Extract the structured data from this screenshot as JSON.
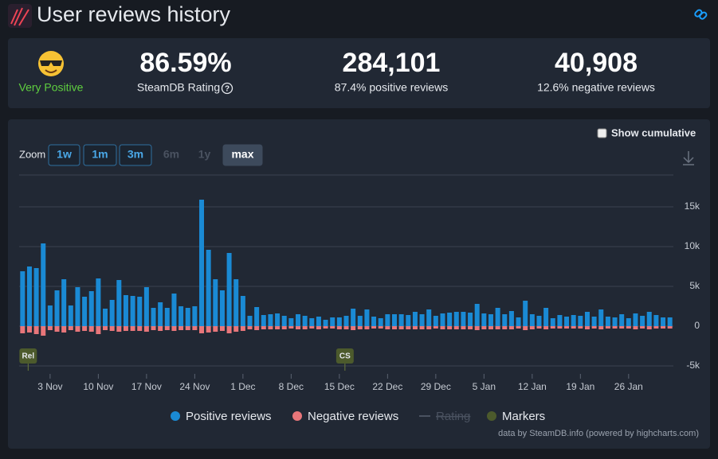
{
  "header": {
    "title": "User reviews history"
  },
  "stats": {
    "rating_label": "Very Positive",
    "score": "86.59%",
    "score_caption": "SteamDB Rating",
    "positive_total": "284,101",
    "positive_caption": "87.4% positive reviews",
    "negative_total": "40,908",
    "negative_caption": "12.6% negative reviews"
  },
  "controls": {
    "cumulative": "Show cumulative",
    "zoom": "Zoom",
    "zoom_buttons": [
      {
        "label": "1w",
        "state": "enabled"
      },
      {
        "label": "1m",
        "state": "enabled"
      },
      {
        "label": "3m",
        "state": "enabled"
      },
      {
        "label": "6m",
        "state": "disabled"
      },
      {
        "label": "1y",
        "state": "disabled"
      },
      {
        "label": "max",
        "state": "active"
      }
    ]
  },
  "chart_data": {
    "type": "bar",
    "categories": [
      null,
      null,
      null,
      null,
      "3 Nov",
      null,
      null,
      null,
      null,
      null,
      null,
      "10 Nov",
      null,
      null,
      null,
      null,
      null,
      null,
      "17 Nov",
      null,
      null,
      null,
      null,
      null,
      null,
      "24 Nov",
      null,
      null,
      null,
      null,
      null,
      null,
      "1 Dec",
      null,
      null,
      null,
      null,
      null,
      null,
      "8 Dec",
      null,
      null,
      null,
      null,
      null,
      null,
      "15 Dec",
      null,
      null,
      null,
      null,
      null,
      null,
      "22 Dec",
      null,
      null,
      null,
      null,
      null,
      null,
      "29 Dec",
      null,
      null,
      null,
      null,
      null,
      null,
      "5 Jan",
      null,
      null,
      null,
      null,
      null,
      null,
      "12 Jan",
      null,
      null,
      null,
      null,
      null,
      null,
      "19 Jan",
      null,
      null,
      null,
      null,
      null,
      null,
      "26 Jan",
      null,
      null,
      null,
      null,
      null,
      null
    ],
    "series": [
      {
        "name": "Positive reviews",
        "color": "#1a8ad4",
        "values": [
          6900,
          7500,
          7300,
          10400,
          2600,
          4500,
          5900,
          2600,
          4900,
          3700,
          4400,
          6000,
          2200,
          3300,
          5800,
          3900,
          3800,
          3700,
          4900,
          2300,
          3000,
          2300,
          4100,
          2500,
          2300,
          2500,
          15900,
          9600,
          5900,
          4500,
          9200,
          5900,
          3800,
          1300,
          2400,
          1400,
          1500,
          1600,
          1300,
          1000,
          1500,
          1300,
          1000,
          1200,
          800,
          1100,
          1100,
          1300,
          2200,
          1300,
          2100,
          1200,
          1000,
          1500,
          1500,
          1500,
          1400,
          1800,
          1500,
          2100,
          1300,
          1600,
          1700,
          1800,
          1800,
          1700,
          2800,
          1600,
          1500,
          2300,
          1500,
          1900,
          1100,
          3200,
          1500,
          1300,
          2300,
          1000,
          1400,
          1200,
          1400,
          1300,
          1800,
          1200,
          2100,
          1200,
          1100,
          1500,
          1000,
          1600,
          1300,
          1800,
          1400,
          1100,
          1100
        ]
      },
      {
        "name": "Negative reviews",
        "color": "#e8767a",
        "values": [
          -900,
          -800,
          -1000,
          -1200,
          -500,
          -700,
          -800,
          -500,
          -700,
          -600,
          -700,
          -1000,
          -500,
          -600,
          -700,
          -600,
          -600,
          -600,
          -700,
          -500,
          -600,
          -500,
          -600,
          -500,
          -500,
          -500,
          -900,
          -800,
          -700,
          -600,
          -900,
          -700,
          -600,
          -400,
          -500,
          -400,
          -400,
          -400,
          -400,
          -300,
          -400,
          -400,
          -300,
          -400,
          -300,
          -300,
          -400,
          -400,
          -500,
          -400,
          -400,
          -300,
          -300,
          -400,
          -400,
          -400,
          -400,
          -400,
          -400,
          -400,
          -300,
          -400,
          -400,
          -400,
          -400,
          -400,
          -500,
          -400,
          -400,
          -400,
          -400,
          -400,
          -300,
          -500,
          -400,
          -300,
          -400,
          -300,
          -300,
          -300,
          -300,
          -300,
          -400,
          -300,
          -400,
          -300,
          -300,
          -300,
          -300,
          -400,
          -300,
          -400,
          -300,
          -300,
          -300
        ]
      }
    ],
    "hidden_series": [
      "Rating"
    ],
    "markers": {
      "label": "Markers",
      "color": "#4c5a2c",
      "items": [
        {
          "text": "Rel",
          "category": 0
        },
        {
          "text": "CS",
          "category": 46
        }
      ]
    },
    "ylim": [
      -6000,
      19000
    ],
    "yticks": [
      {
        "value": -5000,
        "label": "-5k"
      },
      0,
      {
        "value": 5000,
        "label": "5k"
      },
      {
        "value": 10000,
        "label": "10k"
      },
      {
        "value": 15000,
        "label": "15k"
      }
    ],
    "grid": true,
    "credit": "data by SteamDB.info (powered by highcharts.com)"
  }
}
